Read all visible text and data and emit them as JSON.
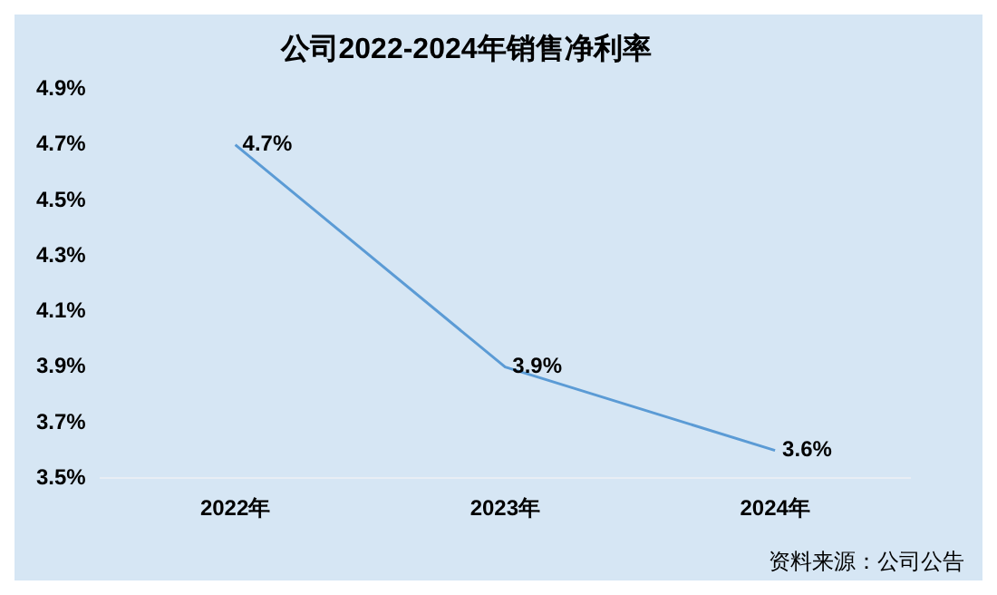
{
  "chart_data": {
    "type": "line",
    "title": "公司2022-2024年销售净利率",
    "categories": [
      "2022年",
      "2023年",
      "2024年"
    ],
    "series": [
      {
        "color": "#5b9bd5",
        "values": [
          4.7,
          3.9,
          3.6
        ],
        "value_labels": [
          "4.7%",
          "3.9%",
          "3.6%"
        ]
      }
    ],
    "ylim": [
      3.5,
      4.9
    ],
    "yticks": [
      {
        "value": 3.5,
        "label": "3.5%"
      },
      {
        "value": 3.7,
        "label": "3.7%"
      },
      {
        "value": 3.9,
        "label": "3.9%"
      },
      {
        "value": 4.1,
        "label": "4.1%"
      },
      {
        "value": 4.3,
        "label": "4.3%"
      },
      {
        "value": 4.5,
        "label": "4.5%"
      },
      {
        "value": 4.7,
        "label": "4.7%"
      },
      {
        "value": 4.9,
        "label": "4.9%"
      }
    ],
    "grid": false,
    "legend": false,
    "marker": "none",
    "line_style": "solid",
    "annotations": [
      "资料来源：公司公告"
    ]
  }
}
